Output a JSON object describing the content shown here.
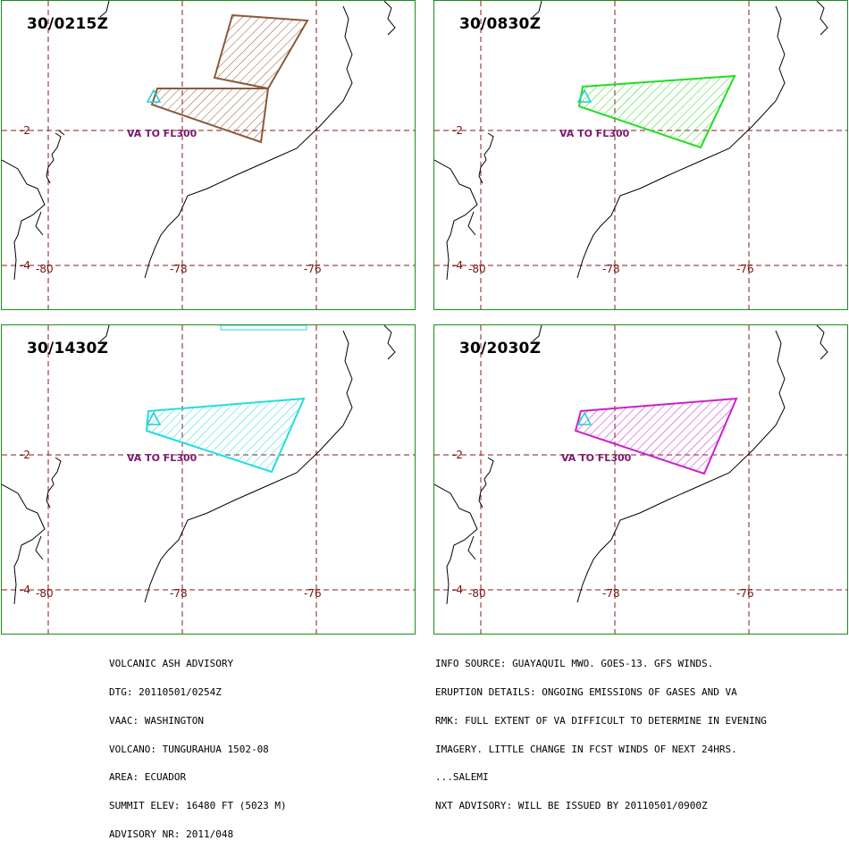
{
  "panels": [
    {
      "time": "30/0215Z",
      "va_label": "VA TO FL300",
      "polygon_color": "#8b5a3c"
    },
    {
      "time": "30/0830Z",
      "va_label": "VA TO FL300",
      "polygon_color": "#22dd22"
    },
    {
      "time": "30/1430Z",
      "va_label": "VA TO FL300",
      "polygon_color": "#22dddd"
    },
    {
      "time": "30/2030Z",
      "va_label": "VA TO FL300",
      "polygon_color": "#cc22cc"
    }
  ],
  "grid_labels": {
    "lat": [
      "-2",
      "-4"
    ],
    "lon": [
      "-80",
      "-78",
      "-76"
    ]
  },
  "colors": {
    "grid": "#8b1a1a",
    "frame": "#1d8a1d",
    "coast": "#000000",
    "volcano_marker": "#22cccc"
  },
  "advisory_left": [
    "VOLCANIC ASH ADVISORY",
    "DTG: 20110501/0254Z",
    "VAAC: WASHINGTON",
    "VOLCANO: TUNGURAHUA 1502-08",
    "AREA: ECUADOR",
    "SUMMIT ELEV: 16480 FT (5023 M)",
    "ADVISORY NR: 2011/048"
  ],
  "advisory_right": [
    "INFO SOURCE: GUAYAQUIL MWO. GOES-13. GFS WINDS.",
    "ERUPTION DETAILS: ONGOING EMISSIONS OF GASES AND VA",
    "RMK: FULL EXTENT OF VA DIFFICULT TO DETERMINE IN EVENING",
    "IMAGERY. LITTLE CHANGE IN FCST WINDS OF NEXT 24HRS.",
    "...SALEMI",
    "NXT ADVISORY: WILL BE ISSUED BY 20110501/0900Z"
  ]
}
